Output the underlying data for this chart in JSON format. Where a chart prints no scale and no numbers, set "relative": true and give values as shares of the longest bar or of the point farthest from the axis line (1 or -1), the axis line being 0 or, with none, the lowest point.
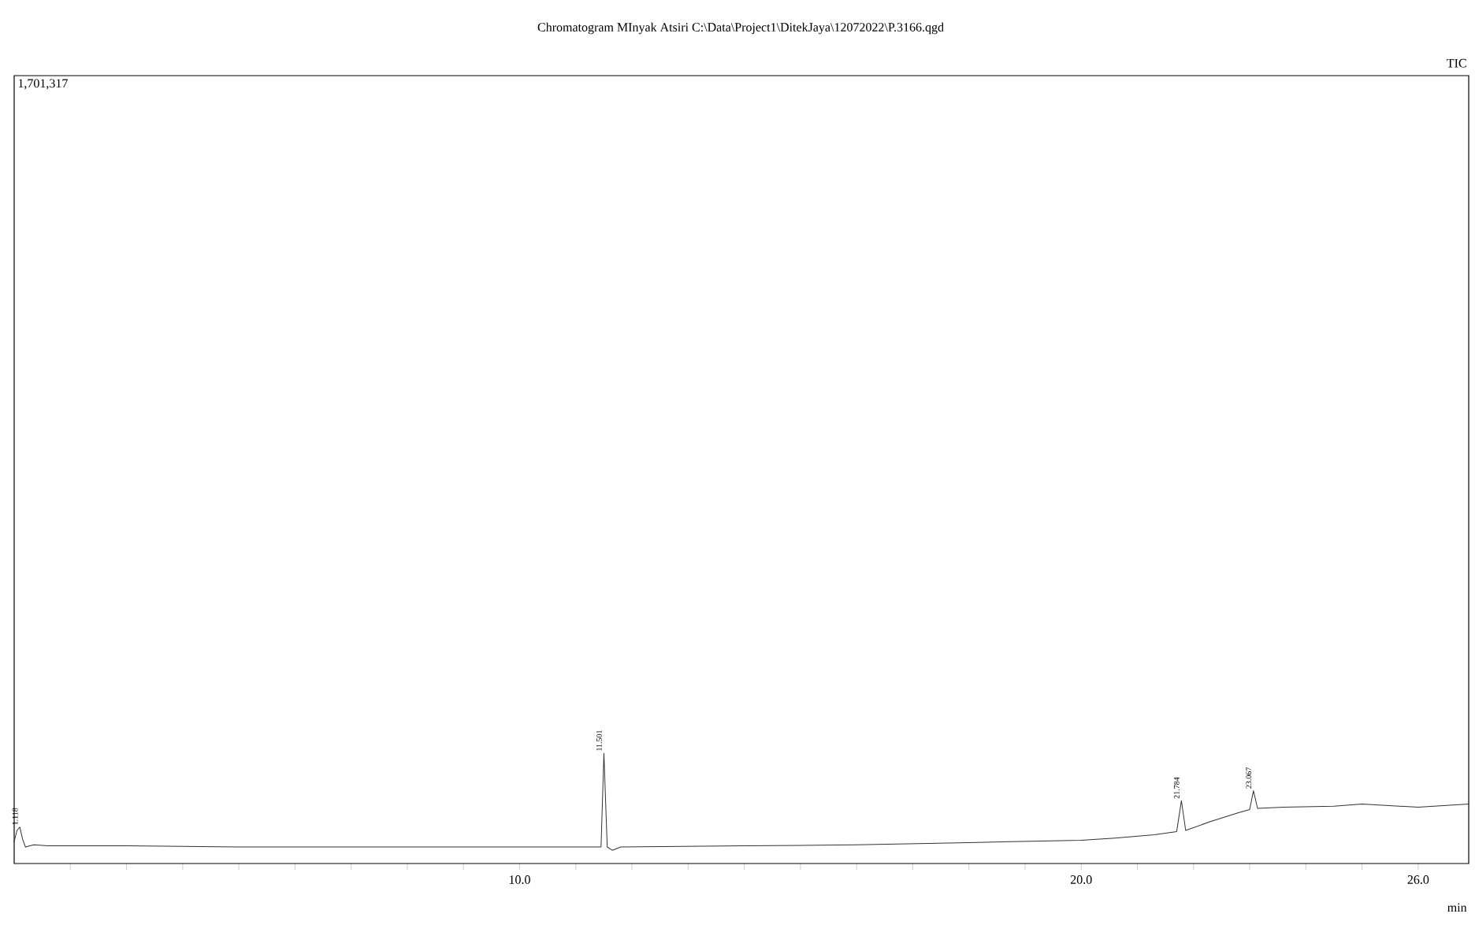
{
  "chart_data": {
    "type": "line",
    "title": "Chromatogram MInyak Atsiri C:\\Data\\Project1\\DitekJaya\\12072022\\P.3166.qgd",
    "xlabel": "min",
    "relative": true,
    "marker": "none",
    "grid": false,
    "tick_labels": "x",
    "xlim": [
      1.0,
      26.9
    ],
    "xticks": [
      {
        "value": 2,
        "label": null
      },
      {
        "value": 3,
        "label": null
      },
      {
        "value": 4,
        "label": null
      },
      {
        "value": 5,
        "label": null
      },
      {
        "value": 6,
        "label": null
      },
      {
        "value": 7,
        "label": null
      },
      {
        "value": 8,
        "label": null
      },
      {
        "value": 9,
        "label": null
      },
      {
        "value": 10,
        "label": "10.0"
      },
      {
        "value": 11,
        "label": null
      },
      {
        "value": 12,
        "label": null
      },
      {
        "value": 13,
        "label": null
      },
      {
        "value": 14,
        "label": null
      },
      {
        "value": 15,
        "label": null
      },
      {
        "value": 16,
        "label": null
      },
      {
        "value": 17,
        "label": null
      },
      {
        "value": 18,
        "label": null
      },
      {
        "value": 19,
        "label": null
      },
      {
        "value": 20,
        "label": "20.0"
      },
      {
        "value": 21,
        "label": null
      },
      {
        "value": 22,
        "label": null
      },
      {
        "value": 23,
        "label": null
      },
      {
        "value": 24,
        "label": null
      },
      {
        "value": 25,
        "label": null
      },
      {
        "value": 26,
        "label": "26.0"
      }
    ],
    "series": [
      {
        "color": "#333333",
        "x": [
          1.0,
          1.05,
          1.1,
          1.15,
          1.2,
          1.35,
          1.6,
          3,
          5,
          8,
          10,
          11.3,
          11.45,
          11.501,
          11.56,
          11.65,
          11.8,
          14,
          16,
          18,
          20,
          20.6,
          21.3,
          21.7,
          21.784,
          21.86,
          22.3,
          22.8,
          23.0,
          23.067,
          23.14,
          23.6,
          24.5,
          25,
          26,
          26.9
        ],
        "values": [
          0.2,
          0.3,
          0.33,
          0.22,
          0.15,
          0.17,
          0.16,
          0.16,
          0.15,
          0.15,
          0.15,
          0.15,
          0.15,
          1.0,
          0.15,
          0.12,
          0.15,
          0.16,
          0.17,
          0.19,
          0.21,
          0.23,
          0.26,
          0.29,
          0.57,
          0.3,
          0.38,
          0.46,
          0.49,
          0.66,
          0.5,
          0.51,
          0.52,
          0.54,
          0.51,
          0.54
        ]
      }
    ],
    "annotations": [
      "TIC",
      "1,701,317",
      {
        "text": "1.118",
        "x": 1.1,
        "y": 0.33
      },
      {
        "text": "11.501",
        "x": 11.501,
        "y": 1.0
      },
      {
        "text": "21.784",
        "x": 21.784,
        "y": 0.57
      },
      {
        "text": "23.067",
        "x": 23.067,
        "y": 0.66
      }
    ]
  }
}
